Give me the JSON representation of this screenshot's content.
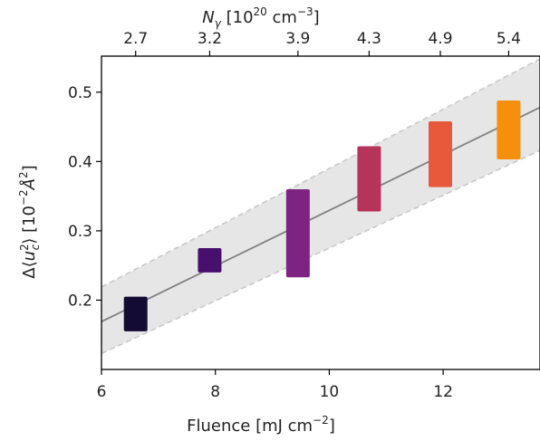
{
  "chart_data": {
    "type": "scatter",
    "x_axis": {
      "label_main": "Fluence [mJ cm",
      "label_sup": "−2",
      "label_end": "]",
      "range": [
        6.0,
        13.7
      ],
      "ticks": [
        6,
        8,
        10,
        12
      ],
      "tick_labels": [
        "6",
        "8",
        "10",
        "12"
      ]
    },
    "top_axis": {
      "label_symbol": "N",
      "label_sub": "γ",
      "label_bracket_open": " [10",
      "label_sup1": "20",
      "label_mid": " cm",
      "label_sup2": "−3",
      "label_bracket_close": "]",
      "ticks_at_fluence": [
        6.6,
        7.9,
        9.45,
        10.7,
        11.95,
        13.15
      ],
      "tick_labels": [
        "2.7",
        "3.2",
        "3.9",
        "4.3",
        "4.9",
        "5.4"
      ]
    },
    "y_axis": {
      "label_prefix": "Δ⟨",
      "label_symbol": "u",
      "label_sub": "c",
      "label_sup": "2",
      "label_after": "⟩ [10",
      "label_sup2": "−2",
      "label_unit": "Å",
      "label_sup3": "2",
      "label_end": "]",
      "range": [
        0.1,
        0.552
      ],
      "ticks": [
        0.2,
        0.3,
        0.4,
        0.5
      ],
      "tick_labels": [
        "0.2",
        "0.3",
        "0.4",
        "0.5"
      ]
    },
    "points": [
      {
        "x": 6.6,
        "y_low": 0.155,
        "y_high": 0.205,
        "color": "#140b35"
      },
      {
        "x": 7.9,
        "y_low": 0.24,
        "y_high": 0.275,
        "color": "#48106d"
      },
      {
        "x": 9.45,
        "y_low": 0.233,
        "y_high": 0.36,
        "color": "#7e2381"
      },
      {
        "x": 10.7,
        "y_low": 0.328,
        "y_high": 0.422,
        "color": "#b63359"
      },
      {
        "x": 11.95,
        "y_low": 0.363,
        "y_high": 0.458,
        "color": "#e8583a"
      },
      {
        "x": 13.15,
        "y_low": 0.403,
        "y_high": 0.488,
        "color": "#f68f0c"
      }
    ],
    "fit_line": {
      "x": [
        6.0,
        13.7
      ],
      "y": [
        0.169,
        0.478
      ],
      "color": "#808080"
    },
    "band": {
      "x": [
        6.0,
        13.7
      ],
      "upper": [
        0.219,
        0.548
      ],
      "lower": [
        0.123,
        0.416
      ],
      "fill": "#e6e6e6",
      "edge": "#c8c8c8"
    },
    "grid": false,
    "legend": "none"
  }
}
